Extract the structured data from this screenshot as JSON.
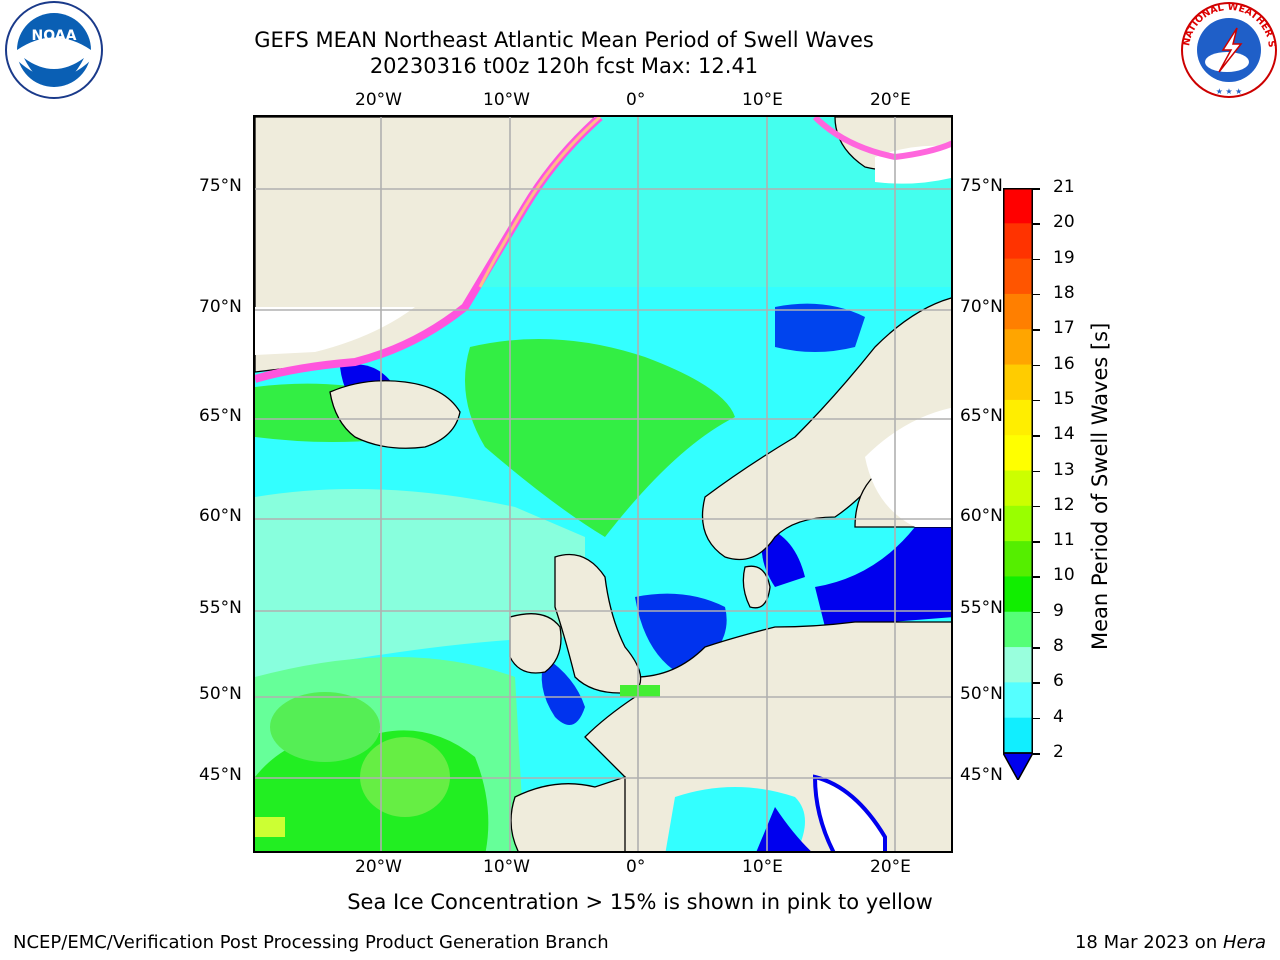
{
  "title": {
    "line1": "GEFS MEAN Northeast Atlantic Mean Period of Swell Waves",
    "line2": "20230316 t00z 120h fcst   Max: 12.41"
  },
  "map": {
    "lon_ticks_top": [
      "20°W",
      "10°W",
      "0°",
      "10°E",
      "20°E"
    ],
    "lon_ticks_bottom": [
      "20°W",
      "10°W",
      "0°",
      "10°E",
      "20°E"
    ],
    "lat_ticks_left": [
      "75°N",
      "70°N",
      "65°N",
      "60°N",
      "55°N",
      "50°N",
      "45°N"
    ],
    "lat_ticks_right": [
      "75°N",
      "70°N",
      "65°N",
      "60°N",
      "55°N",
      "50°N",
      "45°N"
    ],
    "land_color": "#efecdc",
    "ocean_color": "#33ffff"
  },
  "colorbar": {
    "label": "Mean Period of Swell Waves [s]",
    "ticks": [
      "21",
      "20",
      "19",
      "18",
      "17",
      "16",
      "15",
      "14",
      "13",
      "12",
      "11",
      "10",
      "9",
      "8",
      "6",
      "4",
      "2"
    ],
    "colors": [
      "#ff0000",
      "#ff3300",
      "#ff5500",
      "#ff7f00",
      "#ffa500",
      "#ffcc00",
      "#ffee00",
      "#ffff00",
      "#ccff00",
      "#99ff00",
      "#55ee00",
      "#11ee00",
      "#55ff77",
      "#99ffdd",
      "#55ffff",
      "#11eeff",
      "#0077ff",
      "#0000ee"
    ]
  },
  "note": "Sea Ice Concentration > 15% is shown in pink to yellow",
  "footer": {
    "left": "NCEP/EMC/Verification Post Processing Product Generation Branch",
    "right_date": "18 Mar 2023 on ",
    "right_host": "Hera"
  },
  "logos": {
    "noaa_text": "NOAA",
    "nws_text": "NATIONAL WEATHER SERVICE"
  }
}
